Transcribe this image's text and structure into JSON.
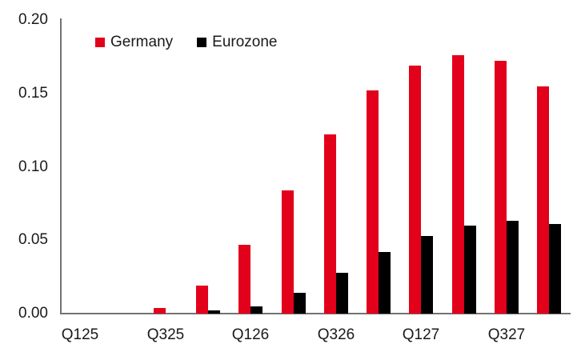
{
  "chart_data": {
    "type": "bar",
    "title": "",
    "categories": [
      "Q125",
      "Q225",
      "Q325",
      "Q425",
      "Q126",
      "Q226",
      "Q326",
      "Q426",
      "Q127",
      "Q227",
      "Q327",
      "Q427"
    ],
    "x_tick_labels": [
      "Q125",
      "Q325",
      "Q126",
      "Q326",
      "Q127",
      "Q327"
    ],
    "x_tick_every": 2,
    "series": [
      {
        "name": "Germany",
        "color": "#e2001a",
        "values": [
          0,
          0,
          0.004,
          0.019,
          0.047,
          0.084,
          0.122,
          0.152,
          0.169,
          0.176,
          0.172,
          0.155
        ]
      },
      {
        "name": "Eurozone",
        "color": "#000000",
        "values": [
          0,
          0,
          0,
          0.002,
          0.005,
          0.014,
          0.028,
          0.042,
          0.053,
          0.06,
          0.063,
          0.061
        ]
      }
    ],
    "ylim": [
      0,
      0.2
    ],
    "y_ticks": [
      {
        "value": 0.0,
        "label": "0.00"
      },
      {
        "value": 0.05,
        "label": "0.05"
      },
      {
        "value": 0.1,
        "label": "0.10"
      },
      {
        "value": 0.15,
        "label": "0.15"
      },
      {
        "value": 0.2,
        "label": "0.20"
      }
    ],
    "grid": false,
    "legend_position": "top-inside",
    "axis_color": "#737373",
    "text_color": "#1a1a1a",
    "background": "#ffffff"
  }
}
